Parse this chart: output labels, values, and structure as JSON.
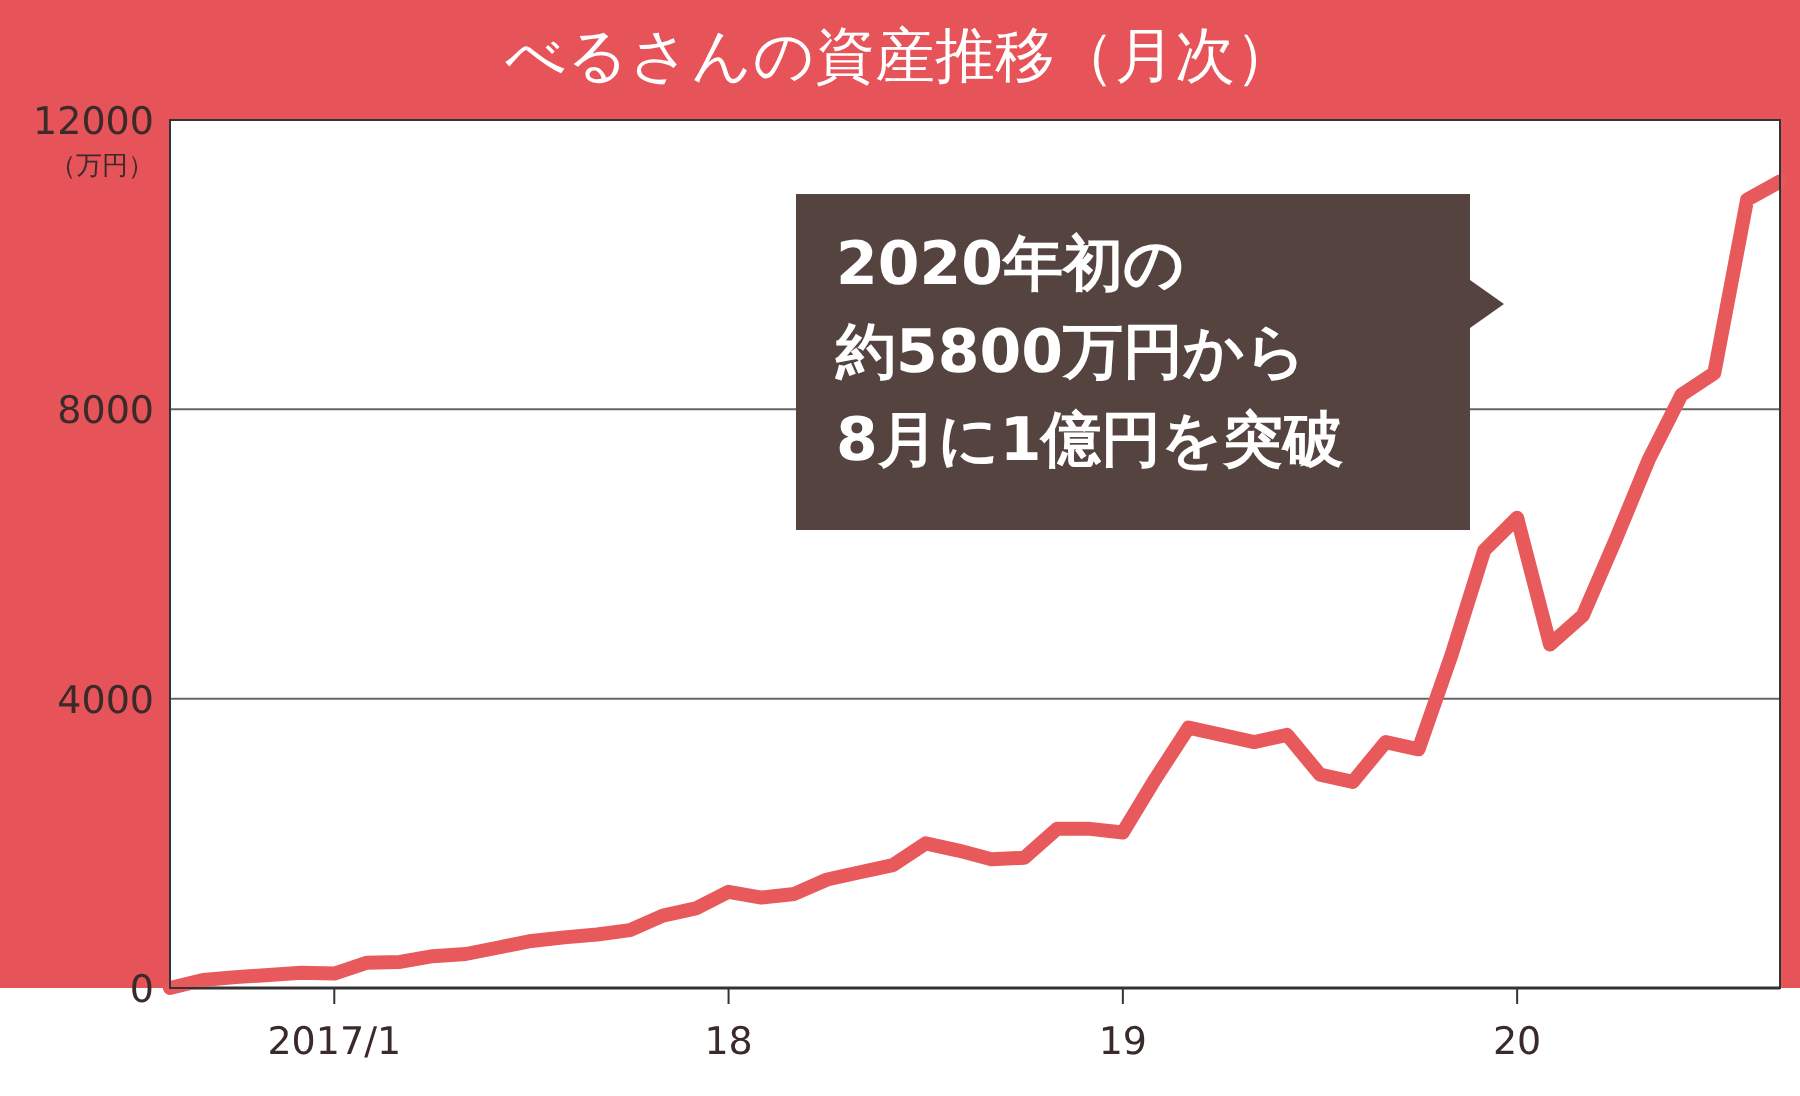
{
  "chart_data": {
    "type": "line",
    "title": "べるさんの資産推移（月次）",
    "ylabel": "（万円）",
    "annotations": [
      "2020年初の",
      "約5800万円から",
      "8月に1億円を突破"
    ],
    "x": [
      "2016-08",
      "2016-09",
      "2016-10",
      "2016-11",
      "2016-12",
      "2017-01",
      "2017-02",
      "2017-03",
      "2017-04",
      "2017-05",
      "2017-06",
      "2017-07",
      "2017-08",
      "2017-09",
      "2017-10",
      "2017-11",
      "2017-12",
      "2018-01",
      "2018-02",
      "2018-03",
      "2018-04",
      "2018-05",
      "2018-06",
      "2018-07",
      "2018-08",
      "2018-09",
      "2018-10",
      "2018-11",
      "2018-12",
      "2019-01",
      "2019-02",
      "2019-03",
      "2019-04",
      "2019-05",
      "2019-06",
      "2019-07",
      "2019-08",
      "2019-09",
      "2019-10",
      "2019-11",
      "2019-12",
      "2020-01",
      "2020-02",
      "2020-03",
      "2020-04",
      "2020-05",
      "2020-06",
      "2020-07",
      "2020-08",
      "2020-09"
    ],
    "series": [
      {
        "color": "#e8595b",
        "values": [
          0,
          110,
          150,
          180,
          210,
          200,
          350,
          360,
          440,
          470,
          560,
          650,
          700,
          740,
          800,
          1000,
          1100,
          1330,
          1250,
          1300,
          1500,
          1600,
          1700,
          2000,
          1900,
          1780,
          1800,
          2200,
          2200,
          2150,
          2900,
          3600,
          3500,
          3400,
          3500,
          2950,
          2850,
          3400,
          3300,
          4600,
          6050,
          6500,
          4750,
          5150,
          6200,
          7300,
          8200,
          8500,
          10900,
          11150
        ]
      }
    ],
    "xlim": [
      "2016-08",
      "2020-09"
    ],
    "xticks": [
      {
        "value": "2017-01",
        "label": "2017/1"
      },
      {
        "value": "2018-01",
        "label": "18"
      },
      {
        "value": "2019-01",
        "label": "19"
      },
      {
        "value": "2020-01",
        "label": "20"
      }
    ],
    "ylim": [
      0,
      12000
    ],
    "yticks": [
      0,
      4000,
      8000,
      12000
    ],
    "grid": "y",
    "marker": "none",
    "line_style": "solid"
  }
}
